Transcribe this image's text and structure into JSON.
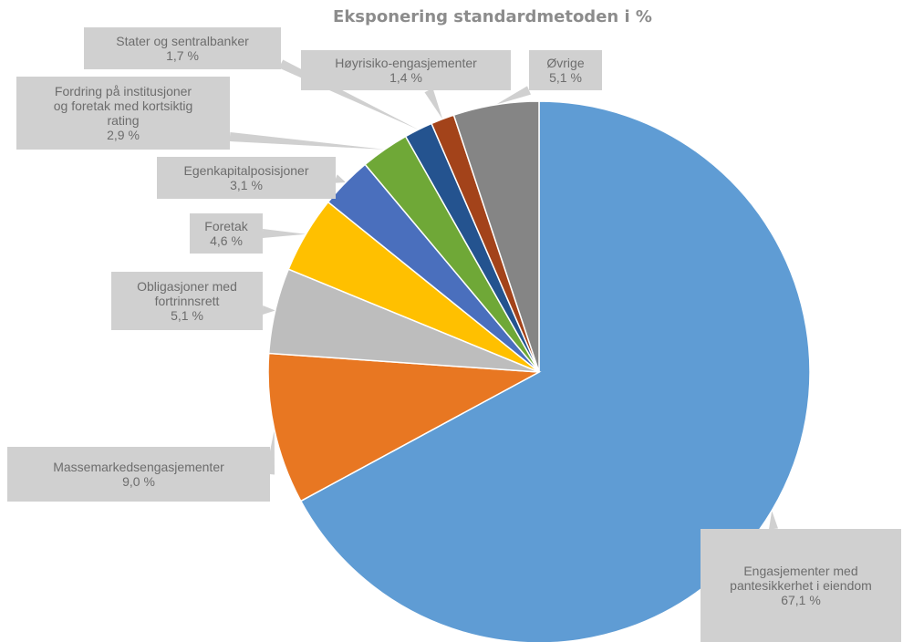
{
  "chart_data": {
    "type": "pie",
    "title": "Eksponering standardmetoden i %",
    "slices": [
      {
        "label": [
          "Engasjementer med",
          "pantesikkerhet i eiendom"
        ],
        "value": 67.1,
        "value_label": "67,1 %",
        "color": "#5f9cd4"
      },
      {
        "label": [
          "Massemarkedsengasjementer"
        ],
        "value": 9.0,
        "value_label": "9,0 %",
        "color": "#e87722"
      },
      {
        "label": [
          "Obligasjoner med",
          "fortrinnsrett"
        ],
        "value": 5.1,
        "value_label": "5,1 %",
        "color": "#bdbdbd"
      },
      {
        "label": [
          "Foretak"
        ],
        "value": 4.6,
        "value_label": "4,6 %",
        "color": "#ffc000"
      },
      {
        "label": [
          "Egenkapitalposisjoner"
        ],
        "value": 3.1,
        "value_label": "3,1 %",
        "color": "#4a6fbd"
      },
      {
        "label": [
          "Fordring på institusjoner",
          "og foretak med kortsiktig",
          "rating"
        ],
        "value": 2.9,
        "value_label": "2,9 %",
        "color": "#6fa837"
      },
      {
        "label": [
          "Stater og sentralbanker"
        ],
        "value": 1.7,
        "value_label": "1,7 %",
        "color": "#24538f"
      },
      {
        "label": [
          "Høyrisiko-engasjementer"
        ],
        "value": 1.4,
        "value_label": "1,4 %",
        "color": "#a3431a"
      },
      {
        "label": [
          "Øvrige"
        ],
        "value": 5.1,
        "value_label": "5,1 %",
        "color": "#858585"
      }
    ]
  }
}
